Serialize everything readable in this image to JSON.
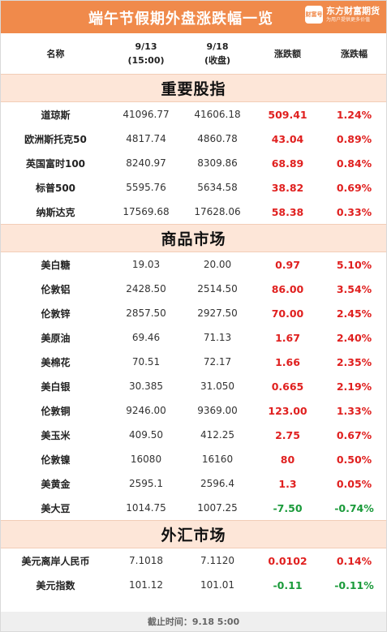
{
  "header": {
    "title": "端午节假期外盘涨跌幅一览",
    "logo_badge": "财富号",
    "logo_name": "东方财富期货",
    "logo_slogan": "为用户提供更多价值"
  },
  "columns": {
    "name": "名称",
    "d1_line1": "9/13",
    "d1_line2": "(15:00)",
    "d2_line1": "9/18",
    "d2_line2": "(收盘)",
    "change": "涨跌额",
    "pct": "涨跌幅"
  },
  "sections": [
    {
      "title": "重要股指",
      "rows": [
        {
          "name": "道琼斯",
          "v1": "41096.77",
          "v2": "41606.18",
          "chg": "509.41",
          "pct": "1.24%",
          "dir": "up"
        },
        {
          "name": "欧洲斯托克50",
          "v1": "4817.74",
          "v2": "4860.78",
          "chg": "43.04",
          "pct": "0.89%",
          "dir": "up"
        },
        {
          "name": "英国富时100",
          "v1": "8240.97",
          "v2": "8309.86",
          "chg": "68.89",
          "pct": "0.84%",
          "dir": "up"
        },
        {
          "name": "标普500",
          "v1": "5595.76",
          "v2": "5634.58",
          "chg": "38.82",
          "pct": "0.69%",
          "dir": "up"
        },
        {
          "name": "纳斯达克",
          "v1": "17569.68",
          "v2": "17628.06",
          "chg": "58.38",
          "pct": "0.33%",
          "dir": "up"
        }
      ]
    },
    {
      "title": "商品市场",
      "rows": [
        {
          "name": "美白糖",
          "v1": "19.03",
          "v2": "20.00",
          "chg": "0.97",
          "pct": "5.10%",
          "dir": "up"
        },
        {
          "name": "伦敦铝",
          "v1": "2428.50",
          "v2": "2514.50",
          "chg": "86.00",
          "pct": "3.54%",
          "dir": "up"
        },
        {
          "name": "伦敦锌",
          "v1": "2857.50",
          "v2": "2927.50",
          "chg": "70.00",
          "pct": "2.45%",
          "dir": "up"
        },
        {
          "name": "美原油",
          "v1": "69.46",
          "v2": "71.13",
          "chg": "1.67",
          "pct": "2.40%",
          "dir": "up"
        },
        {
          "name": "美棉花",
          "v1": "70.51",
          "v2": "72.17",
          "chg": "1.66",
          "pct": "2.35%",
          "dir": "up"
        },
        {
          "name": "美白银",
          "v1": "30.385",
          "v2": "31.050",
          "chg": "0.665",
          "pct": "2.19%",
          "dir": "up"
        },
        {
          "name": "伦敦铜",
          "v1": "9246.00",
          "v2": "9369.00",
          "chg": "123.00",
          "pct": "1.33%",
          "dir": "up"
        },
        {
          "name": "美玉米",
          "v1": "409.50",
          "v2": "412.25",
          "chg": "2.75",
          "pct": "0.67%",
          "dir": "up"
        },
        {
          "name": "伦敦镍",
          "v1": "16080",
          "v2": "16160",
          "chg": "80",
          "pct": "0.50%",
          "dir": "up"
        },
        {
          "name": "美黄金",
          "v1": "2595.1",
          "v2": "2596.4",
          "chg": "1.3",
          "pct": "0.05%",
          "dir": "up"
        },
        {
          "name": "美大豆",
          "v1": "1014.75",
          "v2": "1007.25",
          "chg": "-7.50",
          "pct": "-0.74%",
          "dir": "down"
        }
      ]
    },
    {
      "title": "外汇市场",
      "rows": [
        {
          "name": "美元离岸人民币",
          "v1": "7.1018",
          "v2": "7.1120",
          "chg": "0.0102",
          "pct": "0.14%",
          "dir": "up"
        },
        {
          "name": "美元指数",
          "v1": "101.12",
          "v2": "101.01",
          "chg": "-0.11",
          "pct": "-0.11%",
          "dir": "down"
        }
      ]
    }
  ],
  "footer": {
    "text": "截止时间：9.18 5:00"
  },
  "colors": {
    "banner": "#f08a4b",
    "section_bg": "#fde6d8",
    "up": "#e0201f",
    "down": "#1a9a3a"
  }
}
